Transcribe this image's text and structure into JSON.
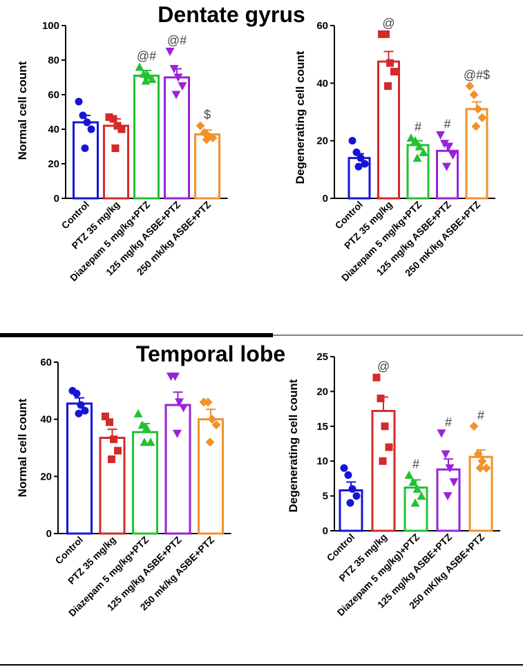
{
  "section_titles": {
    "top": "Dentate gyrus",
    "bottom": "Temporal lobe"
  },
  "colors": {
    "control": "#1515d6",
    "ptz": "#d42a2a",
    "diazepam": "#22c232",
    "asbe125": "#9a22d8",
    "asbe250": "#f0922a"
  },
  "chart_data": [
    {
      "id": "dg_normal",
      "type": "bar",
      "section": "Dentate gyrus",
      "ylabel": "Normal cell count",
      "xlabel": "",
      "ylim": [
        0,
        100
      ],
      "yticks": [
        0,
        20,
        40,
        60,
        80,
        100
      ],
      "categories": [
        "Control",
        "PTZ 35 mg/kg",
        "Diazepam 5 mg/kg+PTZ",
        "125 mg/kg ASBE+PTZ",
        "250 mk/kg ASBE+PTZ"
      ],
      "values": [
        44,
        42,
        71,
        70,
        37
      ],
      "sem": [
        4,
        4,
        3,
        5,
        2.5
      ],
      "points": [
        [
          56,
          48,
          44,
          40,
          29
        ],
        [
          47,
          46,
          42,
          40,
          29
        ],
        [
          76,
          72,
          71,
          69,
          68
        ],
        [
          85,
          75,
          70,
          65,
          60
        ],
        [
          42,
          38,
          36,
          35,
          34
        ]
      ],
      "markers": [
        "circle",
        "square",
        "triangle-up",
        "triangle-down",
        "diamond"
      ],
      "annotations": [
        "",
        "",
        "@#",
        "@#",
        "$"
      ]
    },
    {
      "id": "dg_degenerating",
      "type": "bar",
      "section": "Dentate gyrus",
      "ylabel": "Degenerating cell count",
      "xlabel": "",
      "ylim": [
        0,
        60
      ],
      "yticks": [
        0,
        20,
        40,
        60
      ],
      "categories": [
        "Control",
        "PTZ 35 mg/kg",
        "Diazepam 5 mg/kg+PTZ",
        "125 mg/kg ASBE+PTZ",
        "250 mK/kg ASBE+PTZ"
      ],
      "values": [
        14,
        47.5,
        18.5,
        16.5,
        31
      ],
      "sem": [
        1.5,
        3.5,
        1.5,
        2,
        2.5
      ],
      "points": [
        [
          20,
          16,
          14,
          12,
          11
        ],
        [
          57,
          57,
          47,
          44,
          39
        ],
        [
          21,
          20,
          18,
          16,
          14
        ],
        [
          22,
          19,
          18,
          15,
          11
        ],
        [
          39,
          36,
          31,
          28,
          25
        ]
      ],
      "markers": [
        "circle",
        "square",
        "triangle-up",
        "triangle-down",
        "diamond"
      ],
      "annotations": [
        "",
        "@",
        "#",
        "#",
        "@#$"
      ]
    },
    {
      "id": "tl_normal",
      "type": "bar",
      "section": "Temporal lobe",
      "ylabel": "Normal cell count",
      "xlabel": "",
      "ylim": [
        0,
        60
      ],
      "yticks": [
        0,
        20,
        40,
        60
      ],
      "categories": [
        "Control",
        "PTZ 35 mg/kg",
        "Diazepam 5 mg/kg+PTZ",
        "125 mg/kg ASBE+PTZ",
        "250 mk/kg ASBE+PTZ"
      ],
      "values": [
        45.5,
        33.5,
        35.5,
        45,
        40
      ],
      "sem": [
        2,
        3,
        3,
        4.5,
        3.5
      ],
      "points": [
        [
          50,
          49,
          45,
          43,
          42
        ],
        [
          41,
          39,
          33,
          29,
          26
        ],
        [
          42,
          38,
          37,
          32,
          32
        ],
        [
          55,
          55,
          46,
          44,
          35
        ],
        [
          46,
          46,
          40,
          38,
          32
        ]
      ],
      "markers": [
        "circle",
        "square",
        "triangle-up",
        "triangle-down",
        "diamond"
      ],
      "annotations": [
        "",
        "",
        "",
        "",
        ""
      ]
    },
    {
      "id": "tl_degenerating",
      "type": "bar",
      "section": "Temporal lobe",
      "ylabel": "Degenerating cell count",
      "xlabel": "",
      "ylim": [
        0,
        25
      ],
      "yticks": [
        0,
        5,
        10,
        15,
        20,
        25
      ],
      "categories": [
        "Control",
        "PTZ 35 mg/kg",
        "Diazepam 5 mg/kg)+PTZ",
        "125 mg/kg ASBE+PTZ",
        "250 mK/kg ASBE+PTZ"
      ],
      "values": [
        5.8,
        17.2,
        6.2,
        8.8,
        10.6
      ],
      "sem": [
        1.2,
        2,
        1.1,
        1.5,
        1
      ],
      "points": [
        [
          9,
          8,
          6,
          5,
          4
        ],
        [
          22,
          19,
          15,
          12,
          10
        ],
        [
          8,
          7,
          6,
          5,
          4
        ],
        [
          14,
          11,
          9,
          7,
          5
        ],
        [
          15,
          11,
          10,
          9,
          9
        ]
      ],
      "markers": [
        "circle",
        "square",
        "triangle-up",
        "triangle-down",
        "diamond"
      ],
      "annotations": [
        "",
        "@",
        "#",
        "#",
        "#"
      ]
    }
  ]
}
